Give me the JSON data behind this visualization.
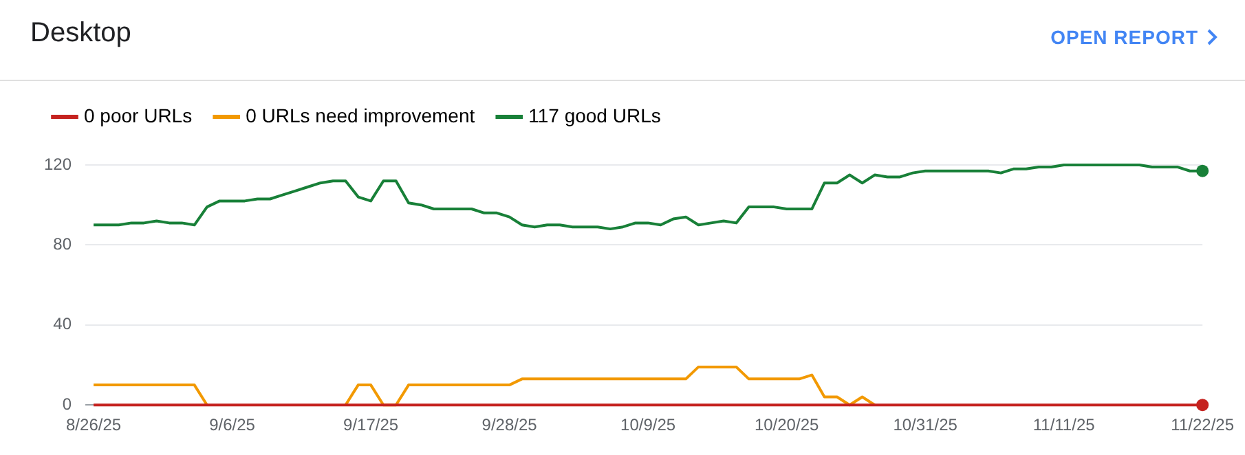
{
  "chart_data": {
    "type": "line",
    "title": "Desktop",
    "annotations": [
      "OPEN REPORT"
    ],
    "categories": [
      "8/26/25",
      null,
      null,
      null,
      null,
      null,
      null,
      null,
      null,
      null,
      null,
      "9/6/25",
      null,
      null,
      null,
      null,
      null,
      null,
      null,
      null,
      null,
      null,
      "9/17/25",
      null,
      null,
      null,
      null,
      null,
      null,
      null,
      null,
      null,
      null,
      "9/28/25",
      null,
      null,
      null,
      null,
      null,
      null,
      null,
      null,
      null,
      null,
      "10/9/25",
      null,
      null,
      null,
      null,
      null,
      null,
      null,
      null,
      null,
      null,
      "10/20/25",
      null,
      null,
      null,
      null,
      null,
      null,
      null,
      null,
      null,
      null,
      "10/31/25",
      null,
      null,
      null,
      null,
      null,
      null,
      null,
      null,
      null,
      null,
      "11/11/25",
      null,
      null,
      null,
      null,
      null,
      null,
      null,
      null,
      null,
      null,
      "11/22/25"
    ],
    "series": [
      {
        "name": "0 poor URLs",
        "color": "#c5221f",
        "values": [
          0,
          0,
          0,
          0,
          0,
          0,
          0,
          0,
          0,
          0,
          0,
          0,
          0,
          0,
          0,
          0,
          0,
          0,
          0,
          0,
          0,
          0,
          0,
          0,
          0,
          0,
          0,
          0,
          0,
          0,
          0,
          0,
          0,
          0,
          0,
          0,
          0,
          0,
          0,
          0,
          0,
          0,
          0,
          0,
          0,
          0,
          0,
          0,
          0,
          0,
          0,
          0,
          0,
          0,
          0,
          0,
          0,
          0,
          0,
          0,
          0,
          0,
          0,
          0,
          0,
          0,
          0,
          0,
          0,
          0,
          0,
          0,
          0,
          0,
          0,
          0,
          0,
          0,
          0,
          0,
          0,
          0,
          0,
          0,
          0,
          0,
          0,
          0,
          0
        ]
      },
      {
        "name": "0 URLs need improvement",
        "color": "#f29900",
        "values": [
          10,
          10,
          10,
          10,
          10,
          10,
          10,
          10,
          10,
          0,
          null,
          null,
          null,
          null,
          null,
          null,
          null,
          null,
          null,
          null,
          0,
          10,
          10,
          0,
          0,
          10,
          10,
          10,
          10,
          10,
          10,
          10,
          10,
          10,
          13,
          13,
          13,
          13,
          13,
          13,
          13,
          13,
          13,
          13,
          13,
          13,
          13,
          13,
          19,
          19,
          19,
          19,
          13,
          13,
          13,
          13,
          13,
          15,
          4,
          4,
          0,
          4,
          0,
          null,
          null,
          null,
          null,
          null,
          null,
          null,
          null,
          null,
          null,
          null,
          null,
          null,
          null,
          null,
          null,
          null,
          null,
          null,
          null,
          null,
          null,
          null,
          null,
          null,
          null
        ]
      },
      {
        "name": "117 good URLs",
        "color": "#188038",
        "values": [
          90,
          90,
          90,
          91,
          91,
          92,
          91,
          91,
          90,
          99,
          102,
          102,
          102,
          103,
          103,
          105,
          107,
          109,
          111,
          112,
          112,
          104,
          102,
          112,
          112,
          101,
          100,
          98,
          98,
          98,
          98,
          96,
          96,
          94,
          90,
          89,
          90,
          90,
          89,
          89,
          89,
          88,
          89,
          91,
          91,
          90,
          93,
          94,
          90,
          91,
          92,
          91,
          99,
          99,
          99,
          98,
          98,
          98,
          111,
          111,
          115,
          111,
          115,
          114,
          114,
          116,
          117,
          117,
          117,
          117,
          117,
          117,
          116,
          118,
          118,
          119,
          119,
          120,
          120,
          120,
          120,
          120,
          120,
          120,
          119,
          119,
          119,
          117,
          117
        ]
      },
      {
        "type": "scatter",
        "color": "#c5221f",
        "marker": "circle",
        "x": [
          "11/22/25"
        ],
        "values": [
          0
        ]
      },
      {
        "type": "scatter",
        "color": "#188038",
        "marker": "circle",
        "x": [
          "11/22/25"
        ],
        "values": [
          117
        ]
      }
    ],
    "ylim": [
      0,
      120
    ],
    "yticks": [
      0,
      40,
      80,
      120
    ],
    "grid": "y",
    "legend": "top left",
    "line_style": "solid"
  }
}
